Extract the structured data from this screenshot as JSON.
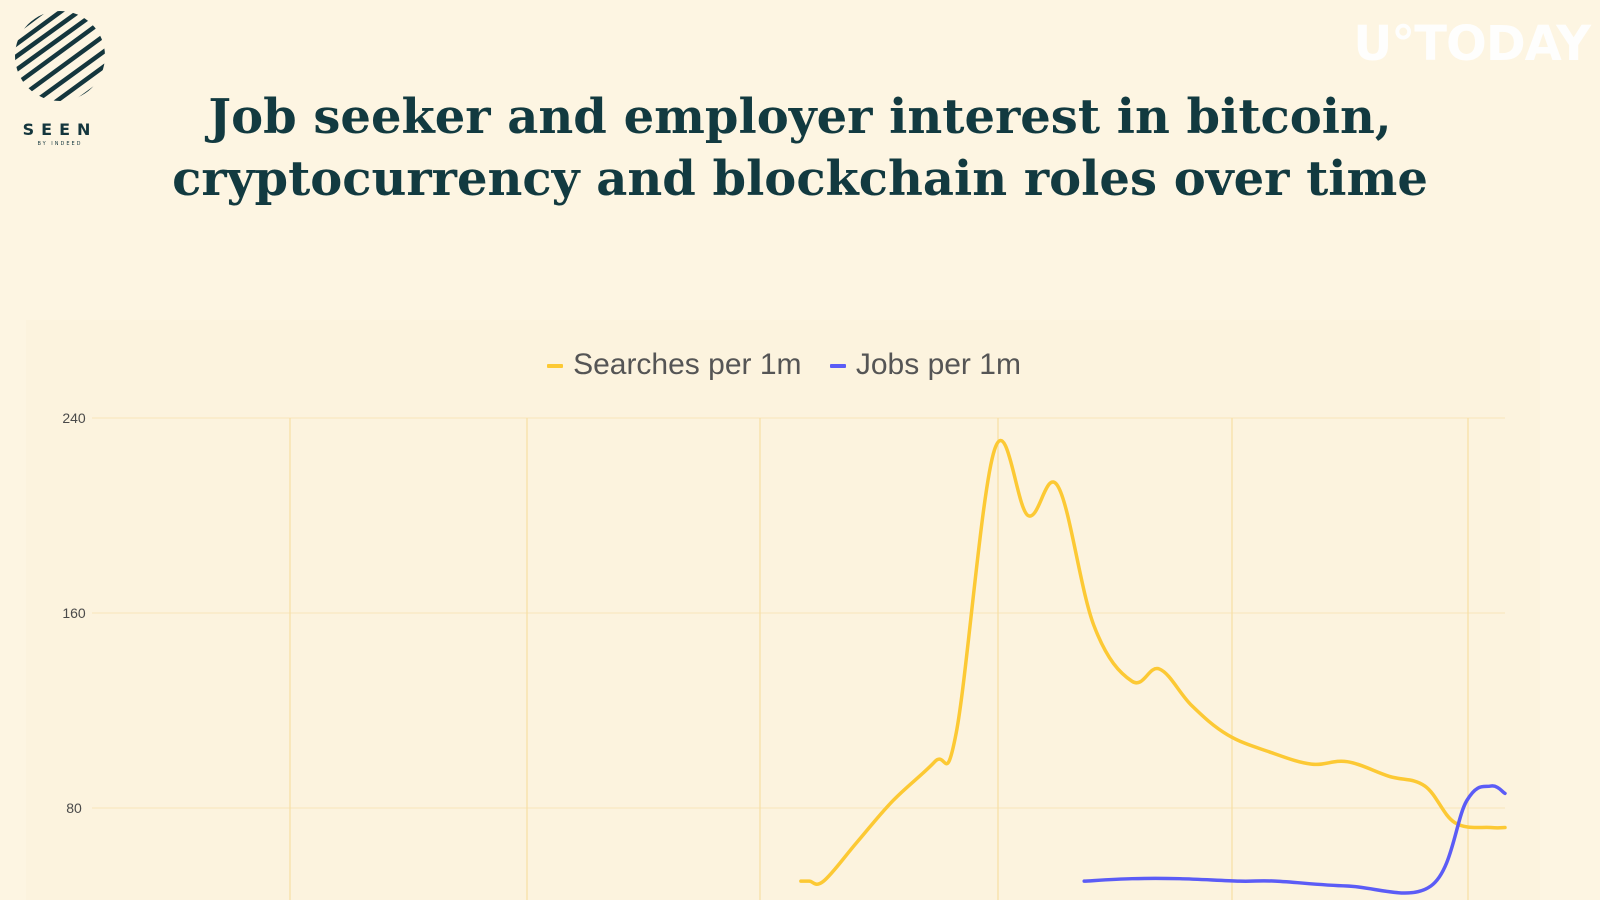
{
  "logo": {
    "word": "SEEN",
    "sub": "BY INDEED"
  },
  "watermark": "U°TODAY",
  "title_line1": "Job seeker and employer interest in bitcoin,",
  "title_line2": "cryptocurrency and blockchain roles over time",
  "colors": {
    "background": "#fdf5e2",
    "title": "#123a40",
    "searches": "#fcc934",
    "jobs": "#5b5cf6",
    "grid": "#f7dfa4"
  },
  "chart_data": {
    "type": "line",
    "title": "Job seeker and employer interest in bitcoin, cryptocurrency and blockchain roles over time",
    "legend_position": "top",
    "grid": true,
    "ylim": [
      0,
      240
    ],
    "yticks": [
      80,
      160,
      240
    ],
    "x_gridline_count": 6,
    "series": [
      {
        "name": "Searches per 1m",
        "color": "#fcc934",
        "points": [
          [
            0.593,
            50
          ],
          [
            0.6,
            50
          ],
          [
            0.612,
            50
          ],
          [
            0.64,
            66
          ],
          [
            0.67,
            83
          ],
          [
            0.705,
            99
          ],
          [
            0.723,
            111
          ],
          [
            0.755,
            227
          ],
          [
            0.783,
            200
          ],
          [
            0.808,
            212
          ],
          [
            0.838,
            155
          ],
          [
            0.87,
            132
          ],
          [
            0.893,
            137
          ],
          [
            0.92,
            122
          ],
          [
            0.95,
            110
          ],
          [
            0.985,
            103
          ],
          [
            1.02,
            98
          ],
          [
            1.05,
            99
          ],
          [
            1.085,
            93
          ],
          [
            1.115,
            89
          ],
          [
            1.14,
            74
          ],
          [
            1.17,
            72
          ],
          [
            1.182,
            72
          ]
        ]
      },
      {
        "name": "Jobs per 1m",
        "color": "#5b5cf6",
        "points": [
          [
            0.83,
            50
          ],
          [
            0.87,
            51
          ],
          [
            0.91,
            51
          ],
          [
            0.96,
            50
          ],
          [
            0.99,
            50
          ],
          [
            1.05,
            48
          ],
          [
            1.12,
            48
          ],
          [
            1.15,
            83
          ],
          [
            1.17,
            89
          ],
          [
            1.182,
            86
          ]
        ]
      }
    ]
  },
  "legend": [
    {
      "label": "Searches per 1m",
      "color": "#fcc934"
    },
    {
      "label": "Jobs per 1m",
      "color": "#5b5cf6"
    }
  ]
}
